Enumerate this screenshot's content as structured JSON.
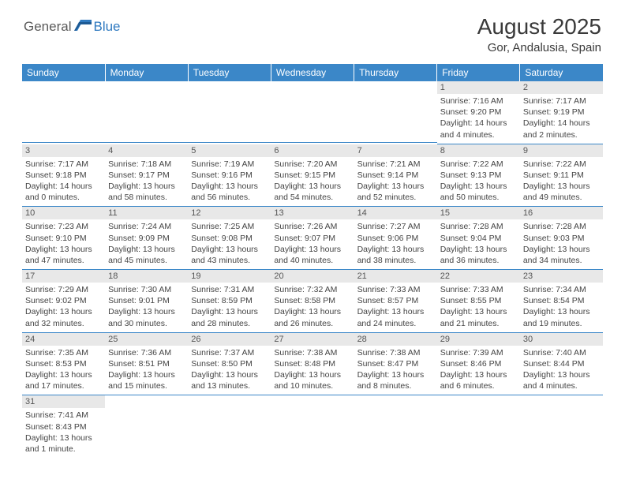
{
  "logo": {
    "part1": "General",
    "part2": "Blue"
  },
  "title": "August 2025",
  "location": "Gor, Andalusia, Spain",
  "colors": {
    "header_bg": "#3b87c8",
    "header_text": "#ffffff",
    "daynum_bg": "#e8e8e8",
    "accent": "#2f7ac0"
  },
  "dayHeaders": [
    "Sunday",
    "Monday",
    "Tuesday",
    "Wednesday",
    "Thursday",
    "Friday",
    "Saturday"
  ],
  "weeks": [
    [
      null,
      null,
      null,
      null,
      null,
      {
        "n": "1",
        "sr": "Sunrise: 7:16 AM",
        "ss": "Sunset: 9:20 PM",
        "d1": "Daylight: 14 hours",
        "d2": "and 4 minutes."
      },
      {
        "n": "2",
        "sr": "Sunrise: 7:17 AM",
        "ss": "Sunset: 9:19 PM",
        "d1": "Daylight: 14 hours",
        "d2": "and 2 minutes."
      }
    ],
    [
      {
        "n": "3",
        "sr": "Sunrise: 7:17 AM",
        "ss": "Sunset: 9:18 PM",
        "d1": "Daylight: 14 hours",
        "d2": "and 0 minutes."
      },
      {
        "n": "4",
        "sr": "Sunrise: 7:18 AM",
        "ss": "Sunset: 9:17 PM",
        "d1": "Daylight: 13 hours",
        "d2": "and 58 minutes."
      },
      {
        "n": "5",
        "sr": "Sunrise: 7:19 AM",
        "ss": "Sunset: 9:16 PM",
        "d1": "Daylight: 13 hours",
        "d2": "and 56 minutes."
      },
      {
        "n": "6",
        "sr": "Sunrise: 7:20 AM",
        "ss": "Sunset: 9:15 PM",
        "d1": "Daylight: 13 hours",
        "d2": "and 54 minutes."
      },
      {
        "n": "7",
        "sr": "Sunrise: 7:21 AM",
        "ss": "Sunset: 9:14 PM",
        "d1": "Daylight: 13 hours",
        "d2": "and 52 minutes."
      },
      {
        "n": "8",
        "sr": "Sunrise: 7:22 AM",
        "ss": "Sunset: 9:13 PM",
        "d1": "Daylight: 13 hours",
        "d2": "and 50 minutes."
      },
      {
        "n": "9",
        "sr": "Sunrise: 7:22 AM",
        "ss": "Sunset: 9:11 PM",
        "d1": "Daylight: 13 hours",
        "d2": "and 49 minutes."
      }
    ],
    [
      {
        "n": "10",
        "sr": "Sunrise: 7:23 AM",
        "ss": "Sunset: 9:10 PM",
        "d1": "Daylight: 13 hours",
        "d2": "and 47 minutes."
      },
      {
        "n": "11",
        "sr": "Sunrise: 7:24 AM",
        "ss": "Sunset: 9:09 PM",
        "d1": "Daylight: 13 hours",
        "d2": "and 45 minutes."
      },
      {
        "n": "12",
        "sr": "Sunrise: 7:25 AM",
        "ss": "Sunset: 9:08 PM",
        "d1": "Daylight: 13 hours",
        "d2": "and 43 minutes."
      },
      {
        "n": "13",
        "sr": "Sunrise: 7:26 AM",
        "ss": "Sunset: 9:07 PM",
        "d1": "Daylight: 13 hours",
        "d2": "and 40 minutes."
      },
      {
        "n": "14",
        "sr": "Sunrise: 7:27 AM",
        "ss": "Sunset: 9:06 PM",
        "d1": "Daylight: 13 hours",
        "d2": "and 38 minutes."
      },
      {
        "n": "15",
        "sr": "Sunrise: 7:28 AM",
        "ss": "Sunset: 9:04 PM",
        "d1": "Daylight: 13 hours",
        "d2": "and 36 minutes."
      },
      {
        "n": "16",
        "sr": "Sunrise: 7:28 AM",
        "ss": "Sunset: 9:03 PM",
        "d1": "Daylight: 13 hours",
        "d2": "and 34 minutes."
      }
    ],
    [
      {
        "n": "17",
        "sr": "Sunrise: 7:29 AM",
        "ss": "Sunset: 9:02 PM",
        "d1": "Daylight: 13 hours",
        "d2": "and 32 minutes."
      },
      {
        "n": "18",
        "sr": "Sunrise: 7:30 AM",
        "ss": "Sunset: 9:01 PM",
        "d1": "Daylight: 13 hours",
        "d2": "and 30 minutes."
      },
      {
        "n": "19",
        "sr": "Sunrise: 7:31 AM",
        "ss": "Sunset: 8:59 PM",
        "d1": "Daylight: 13 hours",
        "d2": "and 28 minutes."
      },
      {
        "n": "20",
        "sr": "Sunrise: 7:32 AM",
        "ss": "Sunset: 8:58 PM",
        "d1": "Daylight: 13 hours",
        "d2": "and 26 minutes."
      },
      {
        "n": "21",
        "sr": "Sunrise: 7:33 AM",
        "ss": "Sunset: 8:57 PM",
        "d1": "Daylight: 13 hours",
        "d2": "and 24 minutes."
      },
      {
        "n": "22",
        "sr": "Sunrise: 7:33 AM",
        "ss": "Sunset: 8:55 PM",
        "d1": "Daylight: 13 hours",
        "d2": "and 21 minutes."
      },
      {
        "n": "23",
        "sr": "Sunrise: 7:34 AM",
        "ss": "Sunset: 8:54 PM",
        "d1": "Daylight: 13 hours",
        "d2": "and 19 minutes."
      }
    ],
    [
      {
        "n": "24",
        "sr": "Sunrise: 7:35 AM",
        "ss": "Sunset: 8:53 PM",
        "d1": "Daylight: 13 hours",
        "d2": "and 17 minutes."
      },
      {
        "n": "25",
        "sr": "Sunrise: 7:36 AM",
        "ss": "Sunset: 8:51 PM",
        "d1": "Daylight: 13 hours",
        "d2": "and 15 minutes."
      },
      {
        "n": "26",
        "sr": "Sunrise: 7:37 AM",
        "ss": "Sunset: 8:50 PM",
        "d1": "Daylight: 13 hours",
        "d2": "and 13 minutes."
      },
      {
        "n": "27",
        "sr": "Sunrise: 7:38 AM",
        "ss": "Sunset: 8:48 PM",
        "d1": "Daylight: 13 hours",
        "d2": "and 10 minutes."
      },
      {
        "n": "28",
        "sr": "Sunrise: 7:38 AM",
        "ss": "Sunset: 8:47 PM",
        "d1": "Daylight: 13 hours",
        "d2": "and 8 minutes."
      },
      {
        "n": "29",
        "sr": "Sunrise: 7:39 AM",
        "ss": "Sunset: 8:46 PM",
        "d1": "Daylight: 13 hours",
        "d2": "and 6 minutes."
      },
      {
        "n": "30",
        "sr": "Sunrise: 7:40 AM",
        "ss": "Sunset: 8:44 PM",
        "d1": "Daylight: 13 hours",
        "d2": "and 4 minutes."
      }
    ],
    [
      {
        "n": "31",
        "sr": "Sunrise: 7:41 AM",
        "ss": "Sunset: 8:43 PM",
        "d1": "Daylight: 13 hours",
        "d2": "and 1 minute."
      },
      null,
      null,
      null,
      null,
      null,
      null
    ]
  ]
}
